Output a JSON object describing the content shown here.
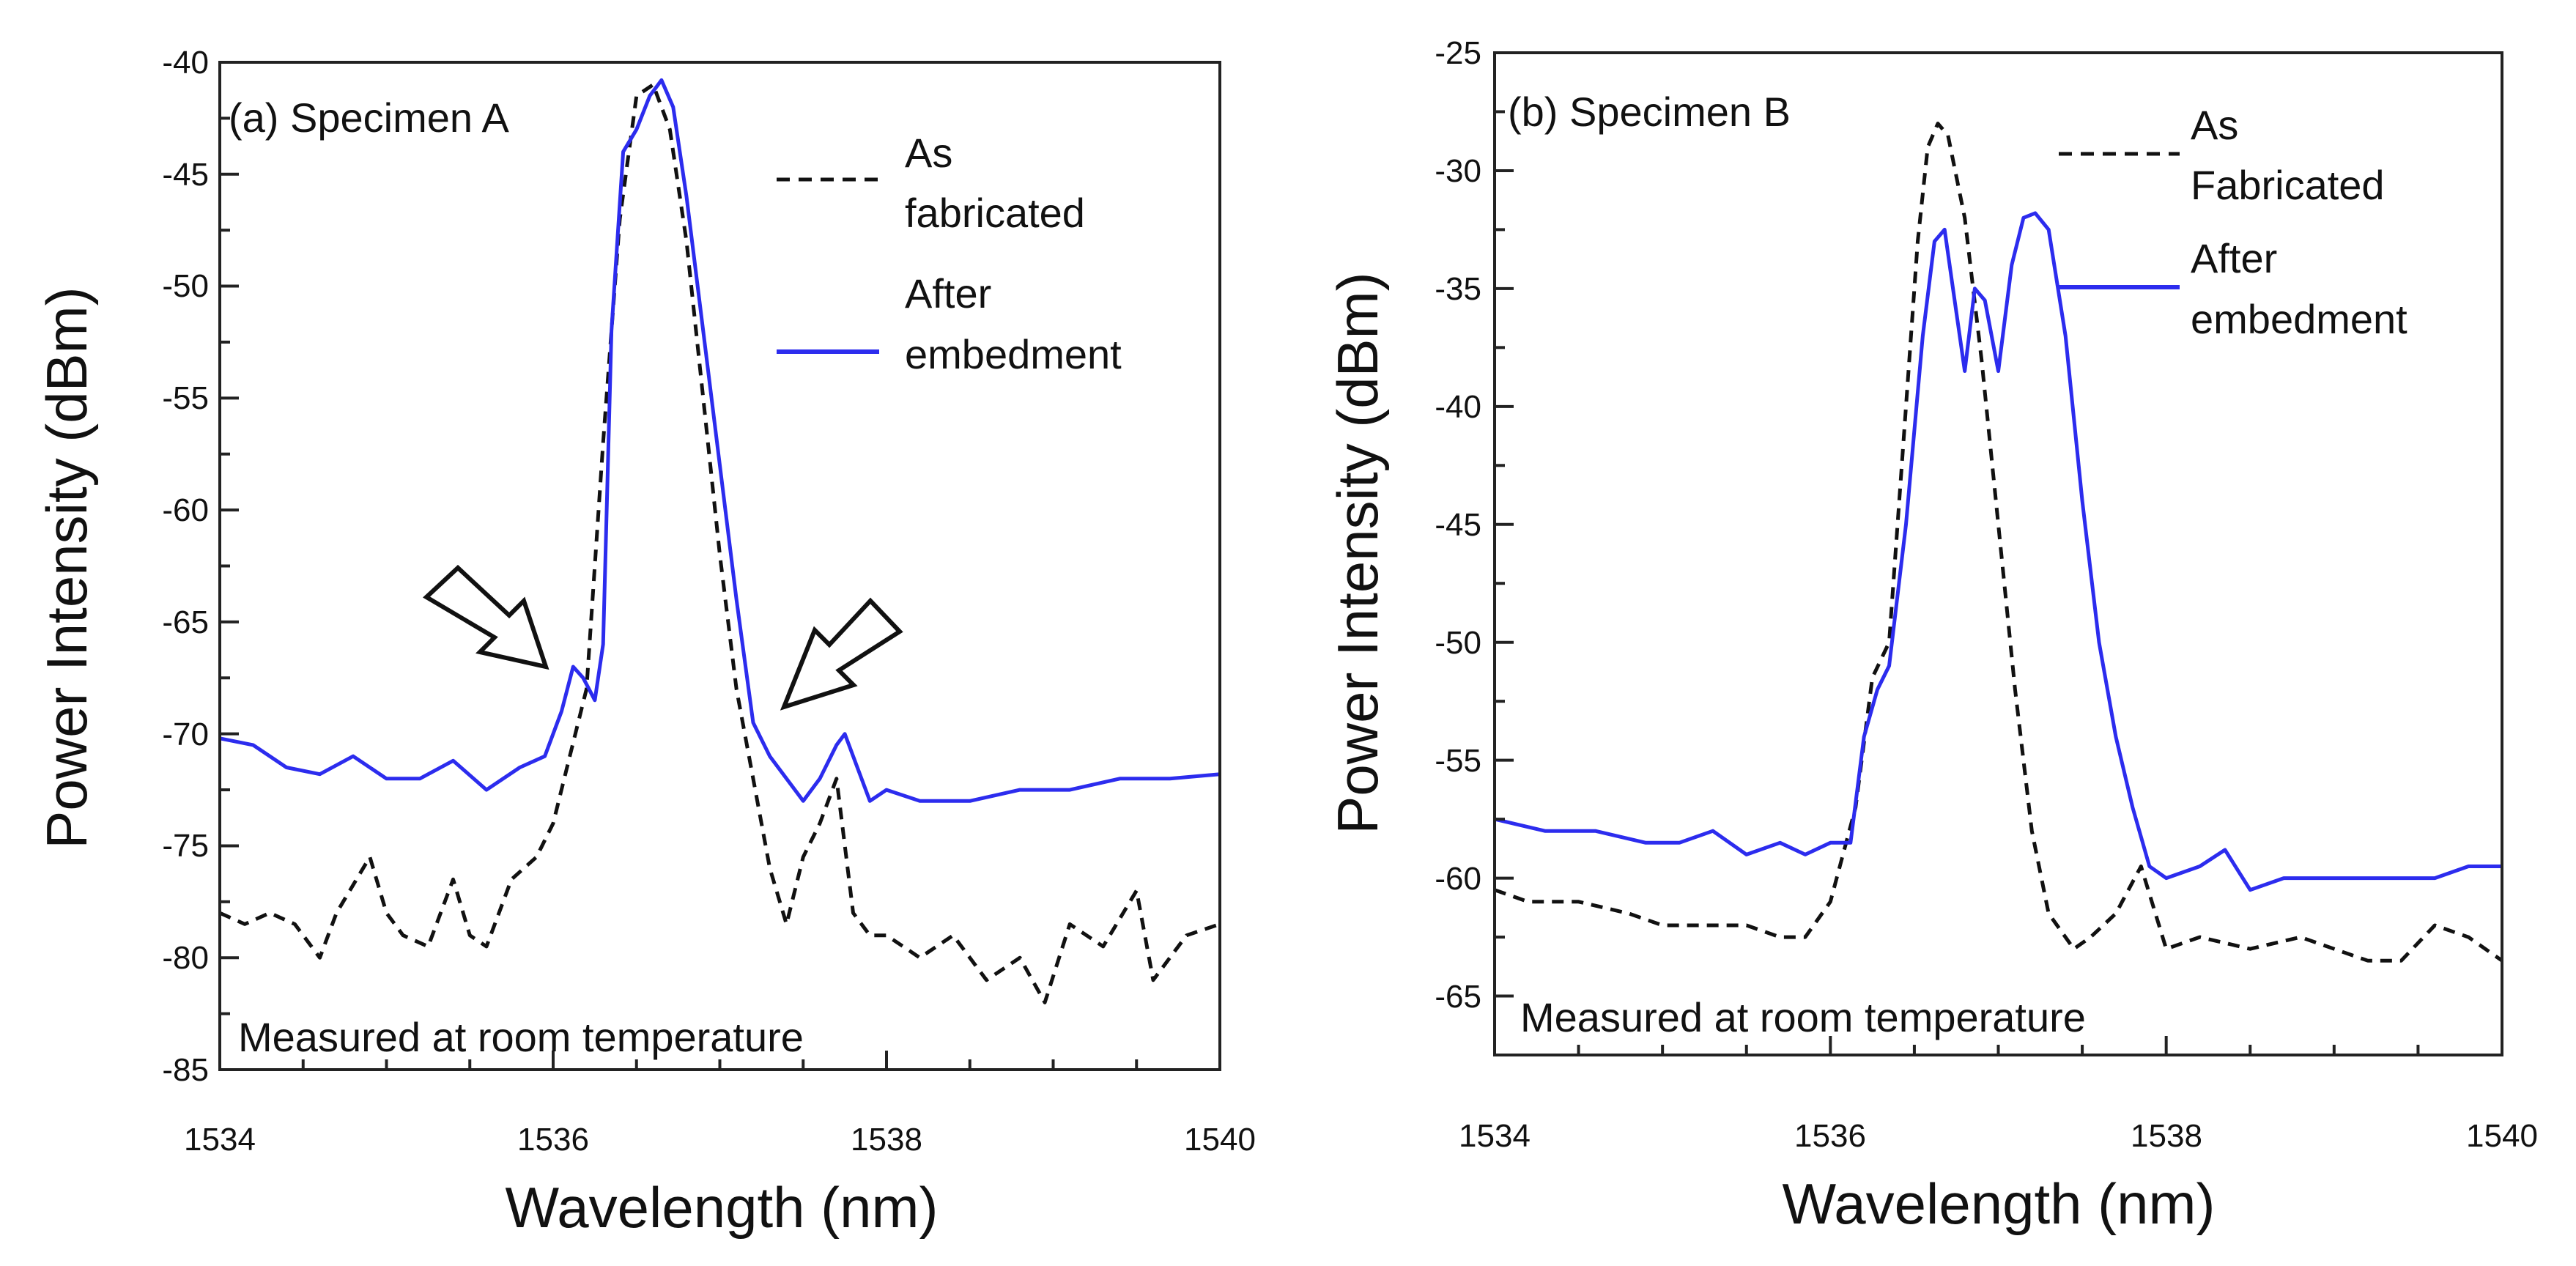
{
  "colors": {
    "after": "#2c2cee",
    "as_fab": "#111111",
    "axis": "#222222"
  },
  "chart_data": [
    {
      "type": "line",
      "panel_label": "(a) Specimen A",
      "xlabel": "Wavelength (nm)",
      "ylabel": "Power Intensity (dBm)",
      "xlim": [
        1534,
        1540
      ],
      "ylim": [
        -85,
        -40
      ],
      "xticks": [
        1534,
        1536,
        1538,
        1540
      ],
      "xtick_labels": [
        "1534",
        "1536",
        "1538",
        "1540"
      ],
      "yticks": [
        -40,
        -45,
        -50,
        -55,
        -60,
        -65,
        -70,
        -75,
        -80,
        -85
      ],
      "ytick_labels": [
        "-40",
        "-45",
        "-50",
        "-55",
        "-60",
        "-65",
        "-70",
        "-75",
        "-80",
        "-85"
      ],
      "annotation": "Measured at room temperature",
      "legend": [
        {
          "lines": [
            "As",
            "fabricated"
          ],
          "style": "dashed",
          "color_key": "as_fab"
        },
        {
          "lines": [
            "After",
            "embedment"
          ],
          "style": "solid",
          "color_key": "after"
        }
      ],
      "series": [
        {
          "name": "As fabricated",
          "style": "dashed",
          "x": [
            1534.0,
            1534.15,
            1534.3,
            1534.45,
            1534.6,
            1534.7,
            1534.9,
            1535.0,
            1535.1,
            1535.25,
            1535.4,
            1535.5,
            1535.6,
            1535.75,
            1535.9,
            1536.0,
            1536.1,
            1536.2,
            1536.3,
            1536.4,
            1536.5,
            1536.6,
            1536.7,
            1536.8,
            1536.9,
            1537.0,
            1537.1,
            1537.2,
            1537.3,
            1537.4,
            1537.5,
            1537.6,
            1537.7,
            1537.8,
            1537.9,
            1538.0,
            1538.2,
            1538.4,
            1538.6,
            1538.8,
            1538.95,
            1539.1,
            1539.3,
            1539.5,
            1539.6,
            1539.8,
            1540.0
          ],
          "y": [
            -78,
            -78.5,
            -78,
            -78.5,
            -80,
            -78,
            -75.5,
            -78,
            -79,
            -79.5,
            -76.5,
            -79,
            -79.5,
            -76.5,
            -75.5,
            -74,
            -71,
            -68,
            -57,
            -47,
            -41.5,
            -41,
            -43,
            -48,
            -55,
            -62,
            -68,
            -72,
            -76,
            -78.5,
            -75.5,
            -74,
            -72,
            -78,
            -79,
            -79,
            -80,
            -79,
            -81,
            -80,
            -82,
            -78.5,
            -79.5,
            -77,
            -81,
            -79,
            -78.5
          ]
        },
        {
          "name": "After embedment",
          "style": "solid",
          "x": [
            1534.0,
            1534.2,
            1534.4,
            1534.6,
            1534.8,
            1535.0,
            1535.2,
            1535.4,
            1535.6,
            1535.8,
            1535.95,
            1536.05,
            1536.12,
            1536.18,
            1536.25,
            1536.3,
            1536.35,
            1536.42,
            1536.5,
            1536.58,
            1536.65,
            1536.72,
            1536.8,
            1536.9,
            1537.0,
            1537.1,
            1537.2,
            1537.3,
            1537.4,
            1537.5,
            1537.6,
            1537.7,
            1537.75,
            1537.8,
            1537.9,
            1538.0,
            1538.2,
            1538.5,
            1538.8,
            1539.1,
            1539.4,
            1539.7,
            1540.0
          ],
          "y": [
            -70.2,
            -70.5,
            -71.5,
            -71.8,
            -71,
            -72,
            -72,
            -71.2,
            -72.5,
            -71.5,
            -71,
            -69,
            -67,
            -67.5,
            -68.5,
            -66,
            -52,
            -44,
            -43,
            -41.5,
            -40.8,
            -42,
            -46,
            -52,
            -58,
            -64,
            -69.5,
            -71,
            -72,
            -73,
            -72,
            -70.5,
            -70,
            -71,
            -73,
            -72.5,
            -73,
            -73,
            -72.5,
            -72.5,
            -72,
            -72,
            -71.8
          ]
        }
      ]
    },
    {
      "type": "line",
      "panel_label": "(b) Specimen B",
      "xlabel": "Wavelength (nm)",
      "ylabel": "Power Intensity (dBm)",
      "xlim": [
        1534,
        1540
      ],
      "ylim": [
        -67.5,
        -25
      ],
      "xticks": [
        1534,
        1536,
        1538,
        1540
      ],
      "xtick_labels": [
        "1534",
        "1536",
        "1538",
        "1540"
      ],
      "yticks": [
        -25,
        -30,
        -35,
        -40,
        -45,
        -50,
        -55,
        -60,
        -65
      ],
      "ytick_labels": [
        "-25",
        "-30",
        "-35",
        "-40",
        "-45",
        "-50",
        "-55",
        "-60",
        "-65"
      ],
      "annotation": "Measured at room temperature",
      "legend": [
        {
          "lines": [
            "As",
            "Fabricated"
          ],
          "style": "dashed",
          "color_key": "as_fab"
        },
        {
          "lines": [
            "After",
            "embedment"
          ],
          "style": "solid",
          "color_key": "after"
        }
      ],
      "series": [
        {
          "name": "As Fabricated",
          "style": "dashed",
          "x": [
            1534.0,
            1534.2,
            1534.5,
            1534.8,
            1535.0,
            1535.3,
            1535.5,
            1535.7,
            1535.85,
            1536.0,
            1536.15,
            1536.25,
            1536.35,
            1536.45,
            1536.52,
            1536.58,
            1536.64,
            1536.7,
            1536.8,
            1536.9,
            1537.0,
            1537.1,
            1537.2,
            1537.3,
            1537.35,
            1537.45,
            1537.55,
            1537.7,
            1537.85,
            1538.0,
            1538.2,
            1538.5,
            1538.8,
            1539.0,
            1539.2,
            1539.4,
            1539.6,
            1539.8,
            1540.0
          ],
          "y": [
            -60.5,
            -61,
            -61,
            -61.5,
            -62,
            -62,
            -62,
            -62.5,
            -62.5,
            -61,
            -57,
            -51.5,
            -50,
            -40,
            -33,
            -29,
            -28,
            -28.5,
            -32,
            -38,
            -45,
            -52,
            -58,
            -61.5,
            -62,
            -63,
            -62.5,
            -61.5,
            -59.5,
            -63,
            -62.5,
            -63,
            -62.5,
            -63,
            -63.5,
            -63.5,
            -62,
            -62.5,
            -63.5
          ]
        },
        {
          "name": "After embedment",
          "style": "solid",
          "x": [
            1534.0,
            1534.3,
            1534.6,
            1534.9,
            1535.1,
            1535.3,
            1535.5,
            1535.7,
            1535.85,
            1536.0,
            1536.12,
            1536.2,
            1536.28,
            1536.35,
            1536.45,
            1536.55,
            1536.62,
            1536.68,
            1536.75,
            1536.8,
            1536.86,
            1536.92,
            1537.0,
            1537.08,
            1537.15,
            1537.22,
            1537.3,
            1537.4,
            1537.5,
            1537.6,
            1537.7,
            1537.8,
            1537.9,
            1538.0,
            1538.2,
            1538.35,
            1538.5,
            1538.7,
            1539.0,
            1539.3,
            1539.6,
            1539.8,
            1540.0
          ],
          "y": [
            -57.5,
            -58,
            -58,
            -58.5,
            -58.5,
            -58,
            -59,
            -58.5,
            -59,
            -58.5,
            -58.5,
            -54,
            -52,
            -51,
            -45,
            -37,
            -33,
            -32.5,
            -36,
            -38.5,
            -35,
            -35.5,
            -38.5,
            -34,
            -32,
            -31.8,
            -32.5,
            -37,
            -44,
            -50,
            -54,
            -57,
            -59.5,
            -60,
            -59.5,
            -58.8,
            -60.5,
            -60,
            -60,
            -60,
            -60,
            -59.5,
            -59.5
          ]
        }
      ]
    }
  ]
}
